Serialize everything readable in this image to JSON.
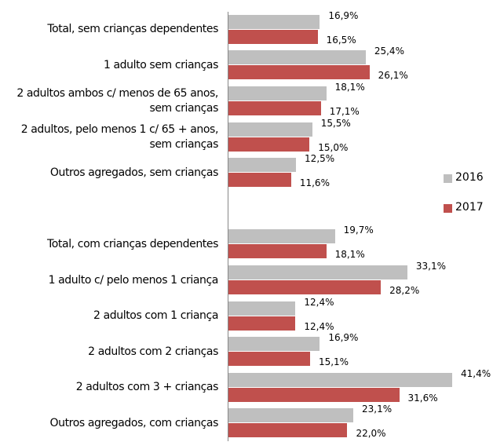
{
  "chart_data": {
    "type": "bar",
    "orientation": "horizontal",
    "categories": [
      "Total, sem crianças dependentes",
      "1 adulto sem crianças",
      "2 adultos ambos c/ menos de 65 anos,\nsem crianças",
      "2 adultos, pelo menos 1 c/ 65 + anos,\nsem crianças",
      "Outros agregados, sem crianças",
      null,
      "Total, com crianças dependentes",
      "1 adulto c/ pelo menos 1 criança",
      "2 adultos com 1 criança",
      "2 adultos com 2 crianças",
      "2 adultos com 3 + crianças",
      "Outros agregados, com crianças"
    ],
    "series": [
      {
        "name": "2016",
        "color": "#bfbfbf",
        "values": [
          16.9,
          25.4,
          18.1,
          15.5,
          12.5,
          null,
          19.7,
          33.1,
          12.4,
          16.9,
          41.4,
          23.1
        ],
        "value_labels": [
          "16,9%",
          "25,4%",
          "18,1%",
          "15,5%",
          "12,5%",
          null,
          "19,7%",
          "33,1%",
          "12,4%",
          "16,9%",
          "41,4%",
          "23,1%"
        ]
      },
      {
        "name": "2017",
        "color": "#c0504d",
        "values": [
          16.5,
          26.1,
          17.1,
          15.0,
          11.6,
          null,
          18.1,
          28.2,
          12.4,
          15.1,
          31.6,
          22.0
        ],
        "value_labels": [
          "16,5%",
          "26,1%",
          "17,1%",
          "15,0%",
          "11,6%",
          null,
          "18,1%",
          "28,2%",
          "12,4%",
          "15,1%",
          "31,6%",
          "22,0%"
        ]
      }
    ],
    "legend": "right"
  }
}
